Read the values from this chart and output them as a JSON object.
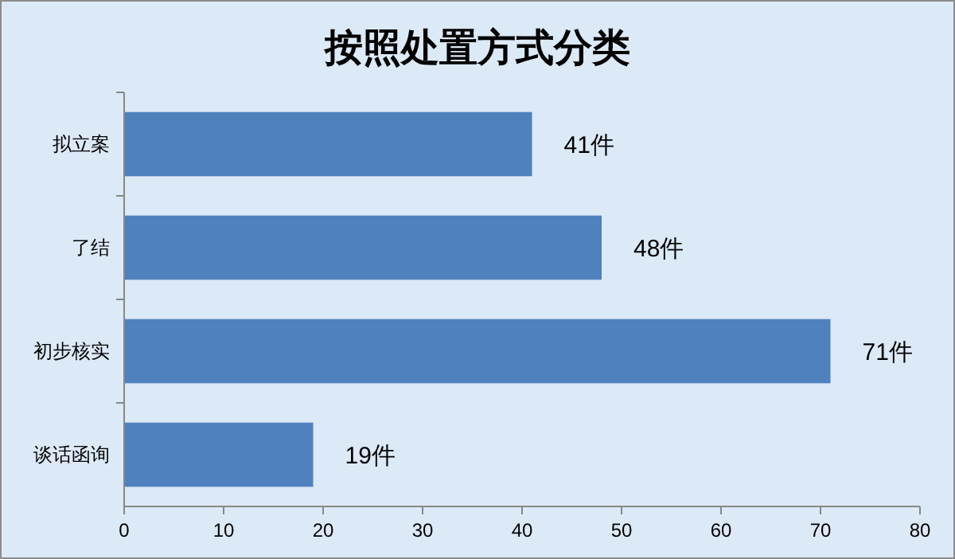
{
  "chart_data": {
    "type": "bar",
    "orientation": "horizontal",
    "title": "按照处置方式分类",
    "categories": [
      "拟立案",
      "了结",
      "初步核实",
      "谈话函询"
    ],
    "values": [
      41,
      48,
      71,
      19
    ],
    "value_labels": [
      "41件",
      "48件",
      "71件",
      "19件"
    ],
    "color": "#4f81bd",
    "xlim": [
      0,
      80
    ],
    "xticks": [
      0,
      10,
      20,
      30,
      40,
      50,
      60,
      70,
      80
    ],
    "grid": false
  }
}
